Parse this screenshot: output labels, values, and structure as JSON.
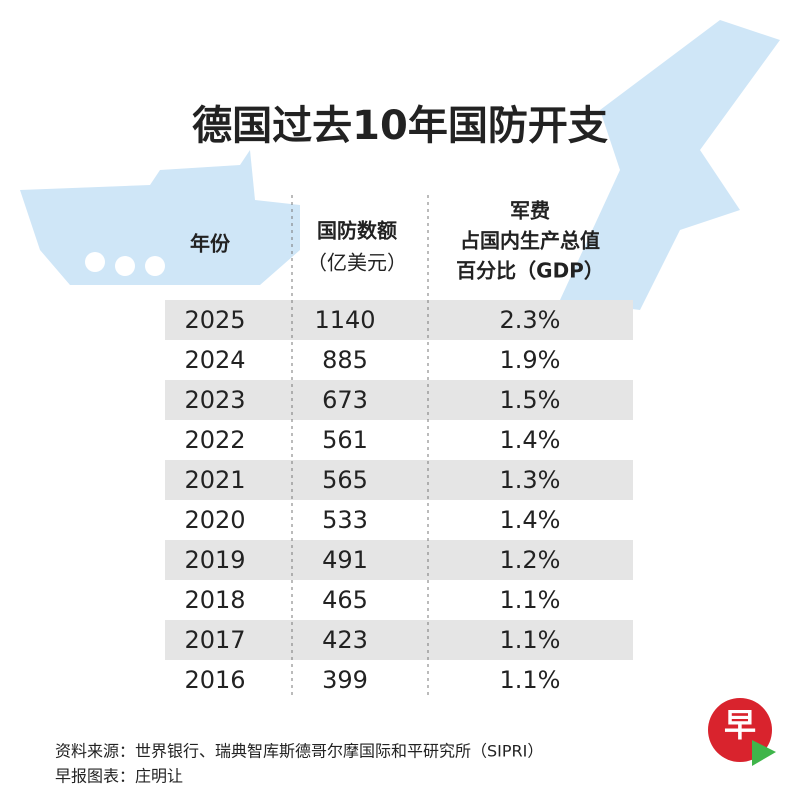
{
  "title": "德国过去10年国防开支",
  "table": {
    "headers": [
      [
        "年份"
      ],
      [
        "国防数额",
        "（亿美元）"
      ],
      [
        "军费",
        "占国内生产总值",
        "百分比（GDP）"
      ]
    ],
    "rows": [
      [
        "2025",
        "1140",
        "2.3%"
      ],
      [
        "2024",
        "885",
        "1.9%"
      ],
      [
        "2023",
        "673",
        "1.5%"
      ],
      [
        "2022",
        "561",
        "1.4%"
      ],
      [
        "2021",
        "565",
        "1.3%"
      ],
      [
        "2020",
        "533",
        "1.4%"
      ],
      [
        "2019",
        "491",
        "1.2%"
      ],
      [
        "2018",
        "465",
        "1.1%"
      ],
      [
        "2017",
        "423",
        "1.1%"
      ],
      [
        "2016",
        "399",
        "1.1%"
      ]
    ]
  },
  "footer": [
    "资料来源：世界银行、瑞典智库斯德哥尔摩国际和平研究所（SIPRI）",
    "早报图表：庄明让"
  ],
  "logo": "早"
}
